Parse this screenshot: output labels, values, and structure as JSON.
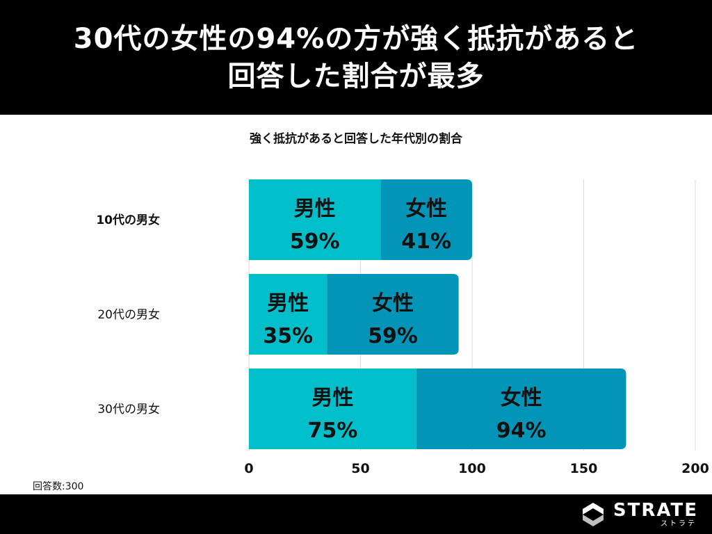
{
  "header": {
    "line1": "30代の女性の94%の方が強く抵抗があると",
    "line2": "回答した割合が最多"
  },
  "note": "回答数:300",
  "brand": {
    "name": "STRATE",
    "kana": "ストラテ"
  },
  "colors": {
    "male": "#00BFCB",
    "female": "#0295B8",
    "grid": "#d9d9d9"
  },
  "chart_data": {
    "type": "bar",
    "orientation": "horizontal",
    "stacked": true,
    "title": "強く抵抗があると回答した年代別の割合",
    "categories": [
      "10代の男女",
      "20代の男女",
      "30代の男女"
    ],
    "series": [
      {
        "name": "男性",
        "values": [
          59,
          35,
          75
        ],
        "labels": [
          "59%",
          "35%",
          "75%"
        ]
      },
      {
        "name": "女性",
        "values": [
          41,
          59,
          94
        ],
        "labels": [
          "41%",
          "59%",
          "94%"
        ]
      }
    ],
    "xlim": [
      0,
      200
    ],
    "xticks": [
      0,
      50,
      100,
      150,
      200
    ],
    "grid": true,
    "legend": "none"
  }
}
